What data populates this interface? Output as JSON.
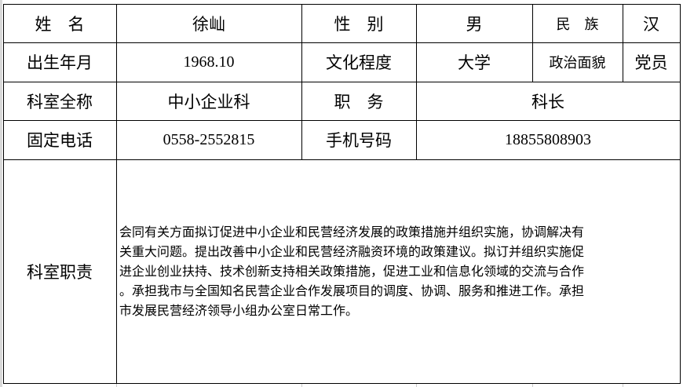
{
  "table": {
    "row1": {
      "name_label": "姓　名",
      "name": "徐屾",
      "gender_label": "性　别",
      "gender": "男",
      "ethnicity_label": "民　族",
      "ethnicity": "汉"
    },
    "row2": {
      "birth_label": "出生年月",
      "birth": "1968.10",
      "education_label": "文化程度",
      "education": "大学",
      "political_label": "政治面貌",
      "political": "党员"
    },
    "row3": {
      "dept_label": "科室全称",
      "dept": "中小企业科",
      "position_label": "职　务",
      "position": "科长"
    },
    "row4": {
      "phone_label": "固定电话",
      "phone": "0558-2552815",
      "mobile_label": "手机号码",
      "mobile": "18855808903"
    },
    "row5": {
      "duty_label": "科室职责",
      "duty_lines": [
        "会同有关方面拟订促进中小企业和民营经济发展的政策措施并组织实施，协调解决有",
        "关重大问题。提出改善中小企业和民营经济融资环境的政策建议。拟订并组织实施促",
        "进企业创业扶持、技术创新支持相关政策措施，促进工业和信息化领域的交流与合作",
        "。承担我市与全国知名民营企业合作发展项目的调度、协调、服务和推进工作。承担",
        "市发展民营经济领导小组办公室日常工作。"
      ]
    }
  }
}
